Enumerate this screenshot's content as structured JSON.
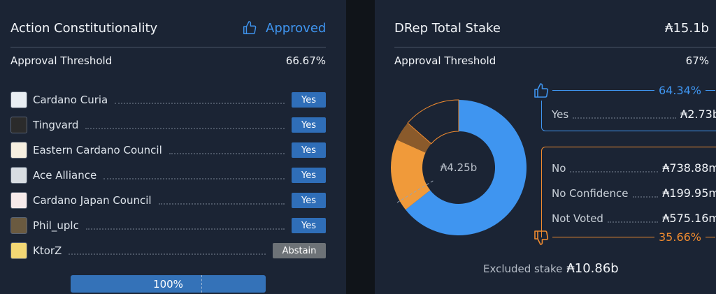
{
  "constitutionality": {
    "title": "Action Constitutionality",
    "status": "Approved",
    "threshold_label": "Approval Threshold",
    "threshold_value": "66.67%",
    "voters": [
      {
        "name": "Cardano Curia",
        "vote": "Yes"
      },
      {
        "name": "Tingvard",
        "vote": "Yes"
      },
      {
        "name": "Eastern Cardano Council",
        "vote": "Yes"
      },
      {
        "name": "Ace Alliance",
        "vote": "Yes"
      },
      {
        "name": "Cardano Japan Council",
        "vote": "Yes"
      },
      {
        "name": "Phil_uplc",
        "vote": "Yes"
      },
      {
        "name": "KtorZ",
        "vote": "Abstain"
      }
    ],
    "progress_label": "100%",
    "progress_value": 1.0
  },
  "drep": {
    "title": "DRep Total Stake",
    "total": "₳15.1b",
    "threshold_label": "Approval Threshold",
    "threshold_value": "67%",
    "center_label": "₳4.25b",
    "yes_pct": "64.34%",
    "no_pct": "35.66%",
    "yes_rows": [
      {
        "label": "Yes",
        "value": "₳2.73b"
      }
    ],
    "no_rows": [
      {
        "label": "No",
        "value": "₳738.88m"
      },
      {
        "label": "No Confidence",
        "value": "₳199.95m"
      },
      {
        "label": "Not Voted",
        "value": "₳575.16m"
      }
    ],
    "excluded_label": "Excluded stake",
    "excluded_value": "₳10.86b"
  },
  "chart_data": {
    "type": "pie",
    "categories": [
      "Yes",
      "No",
      "No Confidence",
      "Not Voted"
    ],
    "values": [
      2.73,
      0.73888,
      0.19995,
      0.57516
    ],
    "unit": "₳ billions",
    "colors": [
      "#3f95f0",
      "#f09a3a",
      "#8a5a2b",
      "#1b2434"
    ]
  },
  "colors": {
    "accent": "#3f95f0",
    "orange": "#f08b2f",
    "yes_badge": "#2f6eb8",
    "abstain_badge": "#6d7277"
  }
}
